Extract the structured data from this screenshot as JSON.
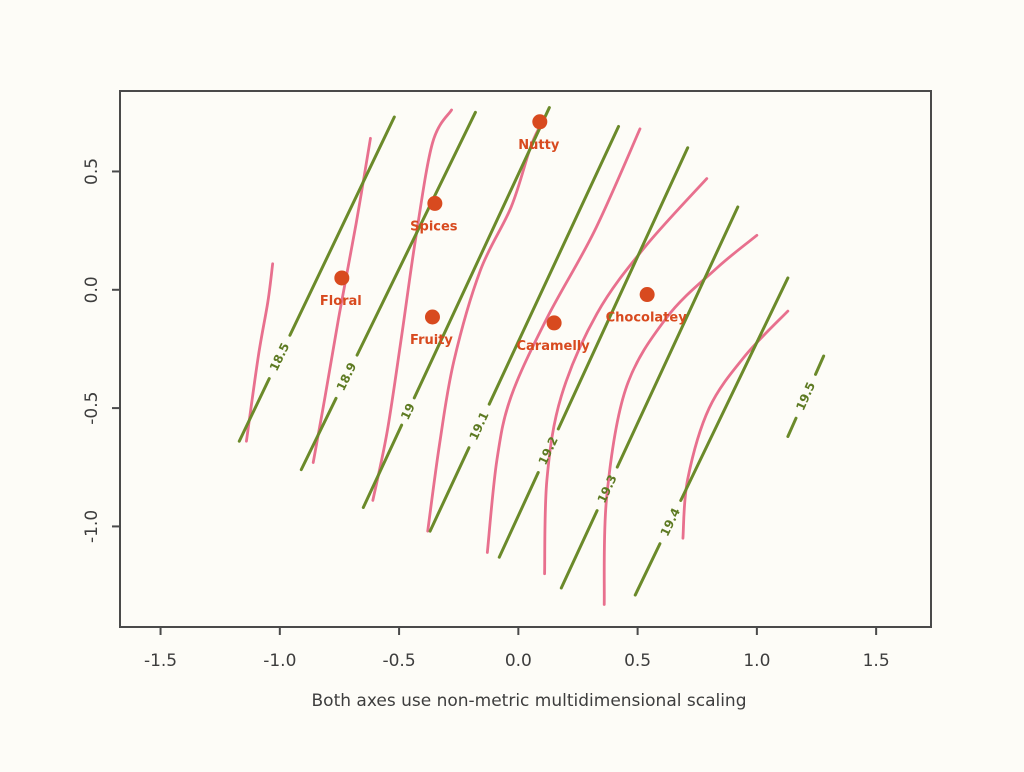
{
  "chart_data": {
    "type": "contour",
    "title": "",
    "xlabel": "Both axes use non-metric multidimensional scaling",
    "ylabel": "",
    "xlim": [
      -1.67,
      1.73
    ],
    "ylim": [
      -1.425,
      0.84
    ],
    "x_ticks": [
      -1.5,
      -1.0,
      -0.5,
      0.0,
      0.5,
      1.0,
      1.5
    ],
    "x_tick_labels": [
      "-1.5",
      "-1.0",
      "-0.5",
      "0.0",
      "0.5",
      "1.0",
      "1.5"
    ],
    "y_ticks": [
      -1.0,
      -0.5,
      0.0,
      0.5
    ],
    "y_tick_labels": [
      "-1.0",
      "-0.5",
      "0.0",
      "0.5"
    ],
    "grid": false,
    "colors": {
      "points": "#d84a1f",
      "green_contours": "#6b8a2a",
      "pink_contours": "#e8708e",
      "frame": "#4a4a4a"
    },
    "points": [
      {
        "label": "Nutty",
        "x": 0.09,
        "y": 0.71
      },
      {
        "label": "Spices",
        "x": -0.35,
        "y": 0.365
      },
      {
        "label": "Floral",
        "x": -0.74,
        "y": 0.05
      },
      {
        "label": "Fruity",
        "x": -0.36,
        "y": -0.115
      },
      {
        "label": "Caramelly",
        "x": 0.15,
        "y": -0.14
      },
      {
        "label": "Chocolatey",
        "x": 0.54,
        "y": -0.02
      }
    ],
    "green_contours": [
      {
        "level": "18.5",
        "points": [
          [
            -1.17,
            -0.64
          ],
          [
            -0.52,
            0.73
          ]
        ]
      },
      {
        "level": "18.9",
        "points": [
          [
            -0.91,
            -0.76
          ],
          [
            -0.18,
            0.75
          ]
        ]
      },
      {
        "level": "19",
        "points": [
          [
            -0.65,
            -0.92
          ],
          [
            0.13,
            0.77
          ]
        ]
      },
      {
        "level": "19.1",
        "points": [
          [
            -0.37,
            -1.02
          ],
          [
            0.42,
            0.69
          ]
        ]
      },
      {
        "level": "19.2",
        "points": [
          [
            -0.08,
            -1.13
          ],
          [
            0.71,
            0.6
          ]
        ]
      },
      {
        "level": "19.3",
        "points": [
          [
            0.18,
            -1.26
          ],
          [
            0.92,
            0.35
          ]
        ]
      },
      {
        "level": "19.4",
        "points": [
          [
            0.49,
            -1.29
          ],
          [
            1.13,
            0.05
          ]
        ]
      },
      {
        "level": "19.5",
        "points": [
          [
            1.13,
            -0.62
          ],
          [
            1.28,
            -0.28
          ]
        ]
      }
    ],
    "pink_contours": [
      [
        [
          -1.14,
          -0.64
        ],
        [
          -1.09,
          -0.28
        ],
        [
          -1.05,
          -0.05
        ],
        [
          -1.03,
          0.11
        ]
      ],
      [
        [
          -0.86,
          -0.73
        ],
        [
          -0.81,
          -0.45
        ],
        [
          -0.75,
          -0.1
        ],
        [
          -0.68,
          0.28
        ],
        [
          -0.62,
          0.64
        ]
      ],
      [
        [
          -0.61,
          -0.89
        ],
        [
          -0.55,
          -0.6
        ],
        [
          -0.49,
          -0.2
        ],
        [
          -0.43,
          0.22
        ],
        [
          -0.36,
          0.62
        ],
        [
          -0.28,
          0.76
        ]
      ],
      [
        [
          -0.38,
          -1.02
        ],
        [
          -0.33,
          -0.65
        ],
        [
          -0.27,
          -0.3
        ],
        [
          -0.16,
          0.08
        ],
        [
          -0.03,
          0.35
        ],
        [
          0.05,
          0.6
        ],
        [
          0.09,
          0.69
        ]
      ],
      [
        [
          -0.13,
          -1.11
        ],
        [
          -0.09,
          -0.72
        ],
        [
          -0.03,
          -0.45
        ],
        [
          0.12,
          -0.12
        ],
        [
          0.32,
          0.25
        ],
        [
          0.51,
          0.68
        ]
      ],
      [
        [
          0.11,
          -1.2
        ],
        [
          0.12,
          -0.8
        ],
        [
          0.18,
          -0.45
        ],
        [
          0.33,
          -0.1
        ],
        [
          0.53,
          0.18
        ],
        [
          0.79,
          0.47
        ]
      ],
      [
        [
          0.36,
          -1.33
        ],
        [
          0.37,
          -0.88
        ],
        [
          0.45,
          -0.42
        ],
        [
          0.62,
          -0.12
        ],
        [
          0.83,
          0.09
        ],
        [
          1.0,
          0.23
        ]
      ],
      [
        [
          0.69,
          -1.05
        ],
        [
          0.71,
          -0.8
        ],
        [
          0.8,
          -0.5
        ],
        [
          0.95,
          -0.28
        ],
        [
          1.13,
          -0.09
        ]
      ]
    ]
  }
}
